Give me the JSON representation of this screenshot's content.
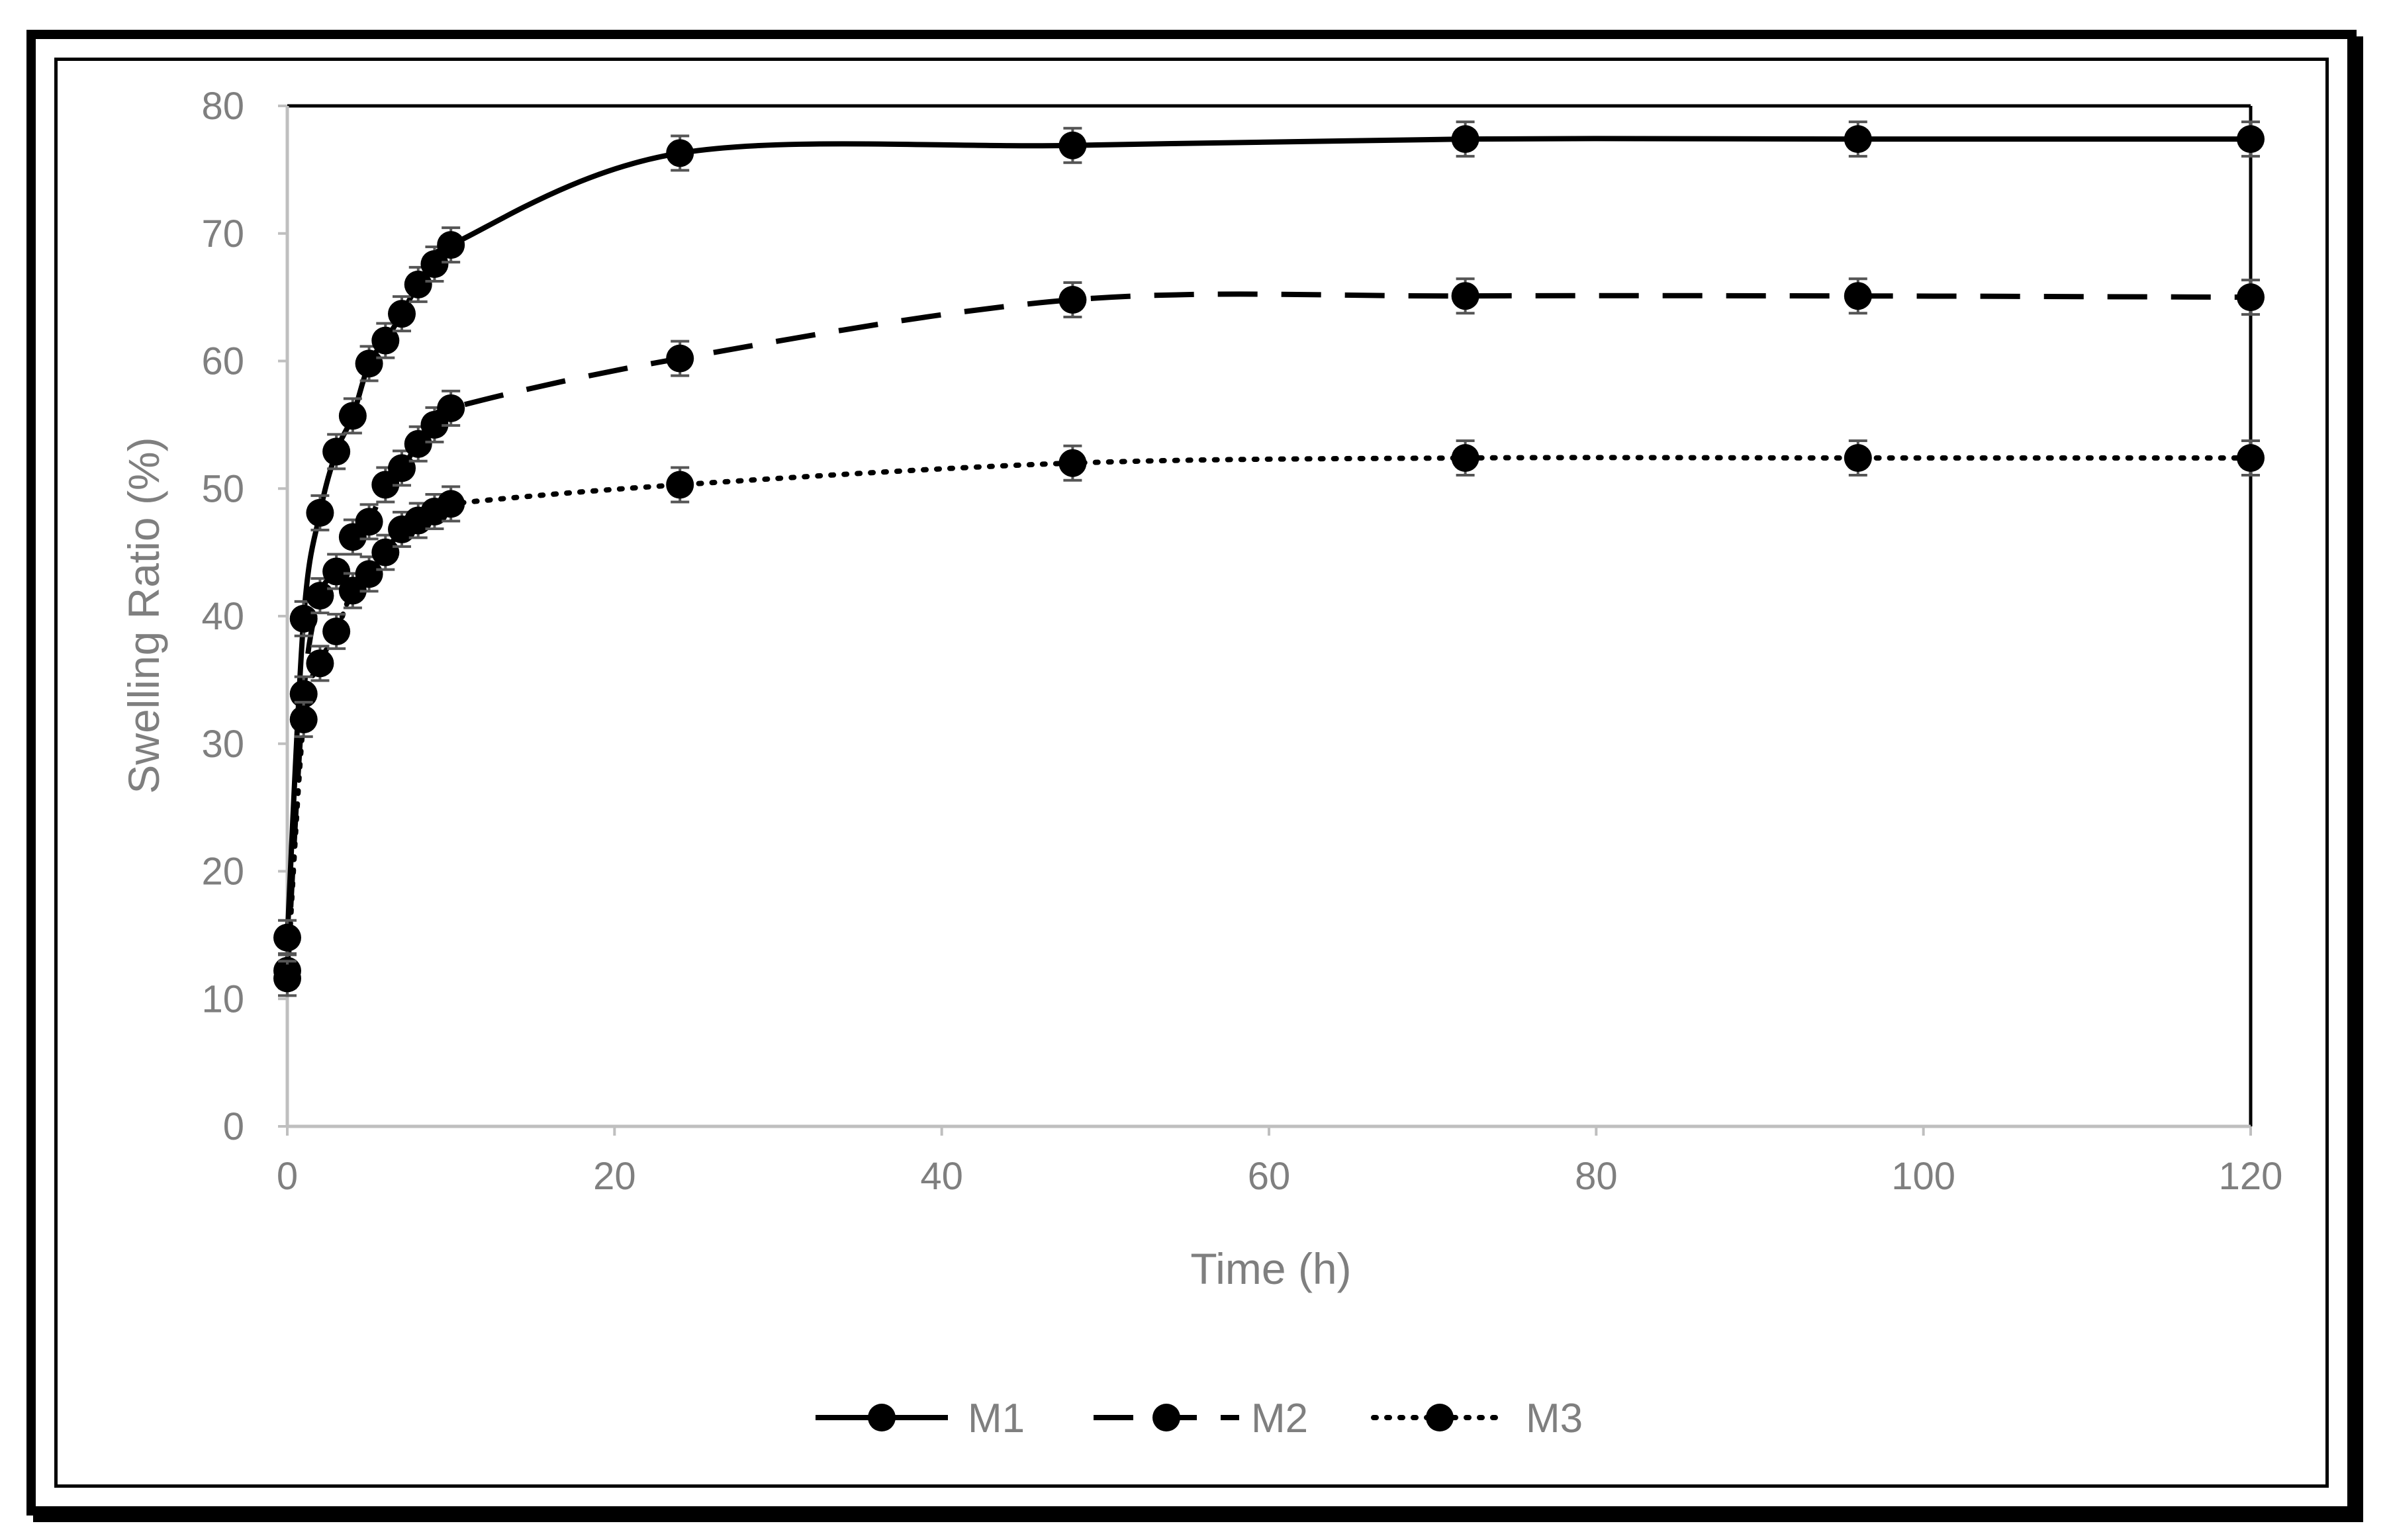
{
  "chart_data": {
    "type": "line",
    "xlabel": "Time (h)",
    "ylabel": "Swelling Ratio (%)",
    "xlim": [
      0,
      120
    ],
    "ylim": [
      0,
      80
    ],
    "xticks": [
      0,
      20,
      40,
      60,
      80,
      100,
      120
    ],
    "yticks": [
      0,
      10,
      20,
      30,
      40,
      50,
      60,
      70,
      80
    ],
    "grid": false,
    "legend_position": "bottom",
    "series": [
      {
        "name": "M1",
        "line_style": "solid",
        "color": "#000000",
        "x": [
          0,
          1,
          2,
          3,
          4,
          5,
          6,
          7,
          8,
          9,
          10,
          24,
          48,
          72,
          96,
          120
        ],
        "y": [
          14.8,
          39.8,
          48.1,
          52.9,
          55.7,
          59.8,
          61.6,
          63.7,
          66.0,
          67.6,
          69.1,
          76.3,
          76.9,
          77.4,
          77.4,
          77.4
        ]
      },
      {
        "name": "M2",
        "line_style": "dashed",
        "color": "#000000",
        "x": [
          0,
          1,
          2,
          3,
          4,
          5,
          6,
          7,
          8,
          9,
          10,
          24,
          48,
          72,
          96,
          120
        ],
        "y": [
          12.2,
          33.9,
          41.6,
          43.5,
          46.2,
          47.4,
          50.3,
          51.6,
          53.5,
          55.0,
          56.3,
          60.2,
          64.8,
          65.1,
          65.1,
          65.0
        ]
      },
      {
        "name": "M3",
        "line_style": "dotted",
        "color": "#000000",
        "x": [
          0,
          1,
          2,
          3,
          4,
          5,
          6,
          7,
          8,
          9,
          10,
          24,
          48,
          72,
          96,
          120
        ],
        "y": [
          11.6,
          31.9,
          36.3,
          38.8,
          42.0,
          43.3,
          45.0,
          46.8,
          47.5,
          48.2,
          48.8,
          50.3,
          52.0,
          52.4,
          52.4,
          52.4
        ]
      }
    ]
  }
}
